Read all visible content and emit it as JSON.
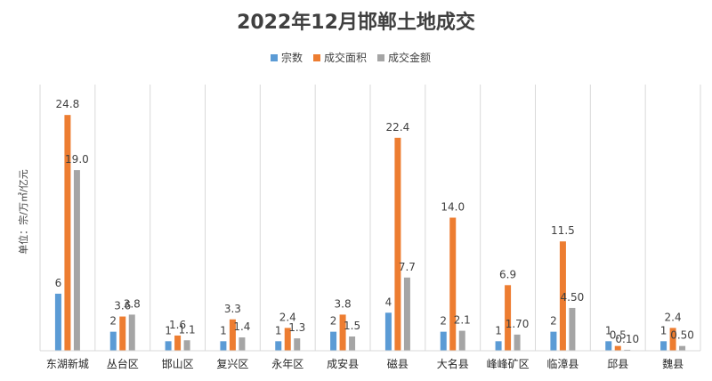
{
  "chart_data": {
    "type": "bar",
    "title": "2022年12月邯郸土地成交",
    "ylabel": "单位：宗/万㎡/亿元",
    "xlabel": "",
    "ylim": [
      0,
      28
    ],
    "grid": "vertical category separators",
    "legend_position": "top",
    "categories": [
      "东湖新城",
      "丛台区",
      "邯山区",
      "复兴区",
      "永年区",
      "成安县",
      "磁县",
      "大名县",
      "峰峰矿区",
      "临漳县",
      "邱县",
      "魏县"
    ],
    "series": [
      {
        "name": "宗数",
        "color": "#5B9BD5",
        "values": [
          6,
          2,
          1,
          1,
          1,
          2,
          4,
          2,
          1,
          2,
          1,
          1
        ],
        "labels": [
          "6",
          "2",
          "1",
          "1",
          "1",
          "2",
          "4",
          "2",
          "1",
          "2",
          "1",
          "1"
        ]
      },
      {
        "name": "成交面积",
        "color": "#ED7D31",
        "values": [
          24.8,
          3.6,
          1.6,
          3.3,
          2.4,
          3.8,
          22.4,
          14.0,
          6.9,
          11.5,
          0.5,
          2.4
        ],
        "labels": [
          "24.8",
          "3.6",
          "1.6",
          "3.3",
          "2.4",
          "3.8",
          "22.4",
          "14.0",
          "6.9",
          "11.5",
          "0.5",
          "2.4"
        ]
      },
      {
        "name": "成交金额",
        "color": "#A5A5A5",
        "values": [
          19.0,
          3.8,
          1.1,
          1.4,
          1.3,
          1.5,
          7.7,
          2.1,
          1.7,
          4.5,
          0.1,
          0.5
        ],
        "labels": [
          "19.0",
          "3.8",
          "1.1",
          "1.4",
          "1.3",
          "1.5",
          "7.7",
          "2.1",
          "1.70",
          "4.50",
          "0.10",
          "0.50"
        ]
      }
    ]
  }
}
